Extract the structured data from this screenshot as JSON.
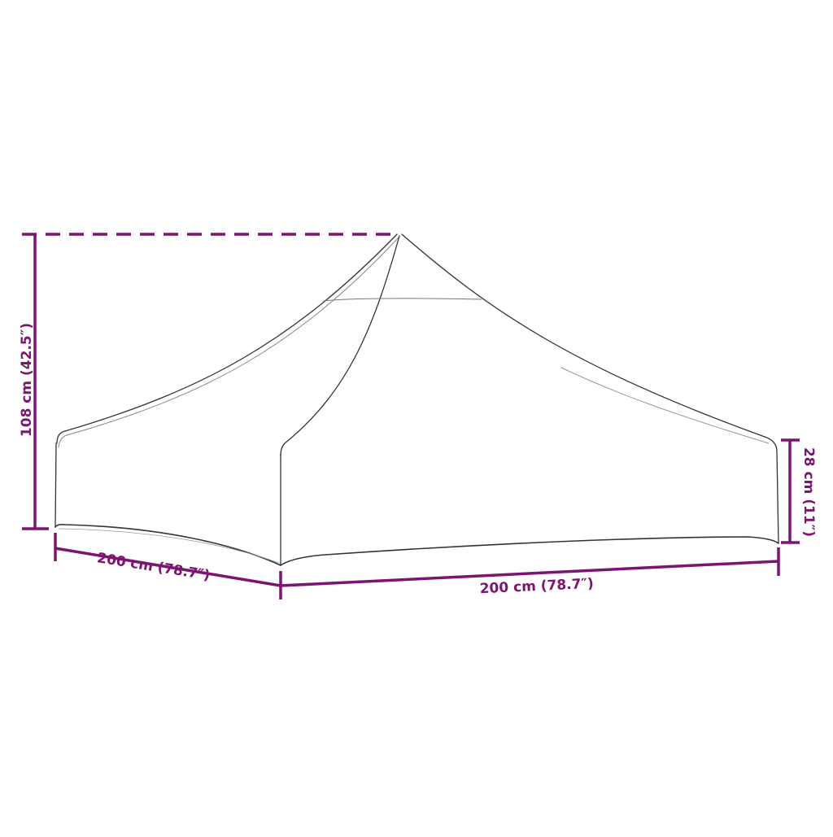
{
  "colors": {
    "dimension": "#7d1470",
    "outline": "#333333",
    "background": "#ffffff"
  },
  "dimensions": {
    "height_total": "108 cm (42.5″)",
    "wall_height": "28 cm (11″)",
    "depth": "200 cm (78.7″)",
    "width": "200 cm (78.7″)"
  }
}
